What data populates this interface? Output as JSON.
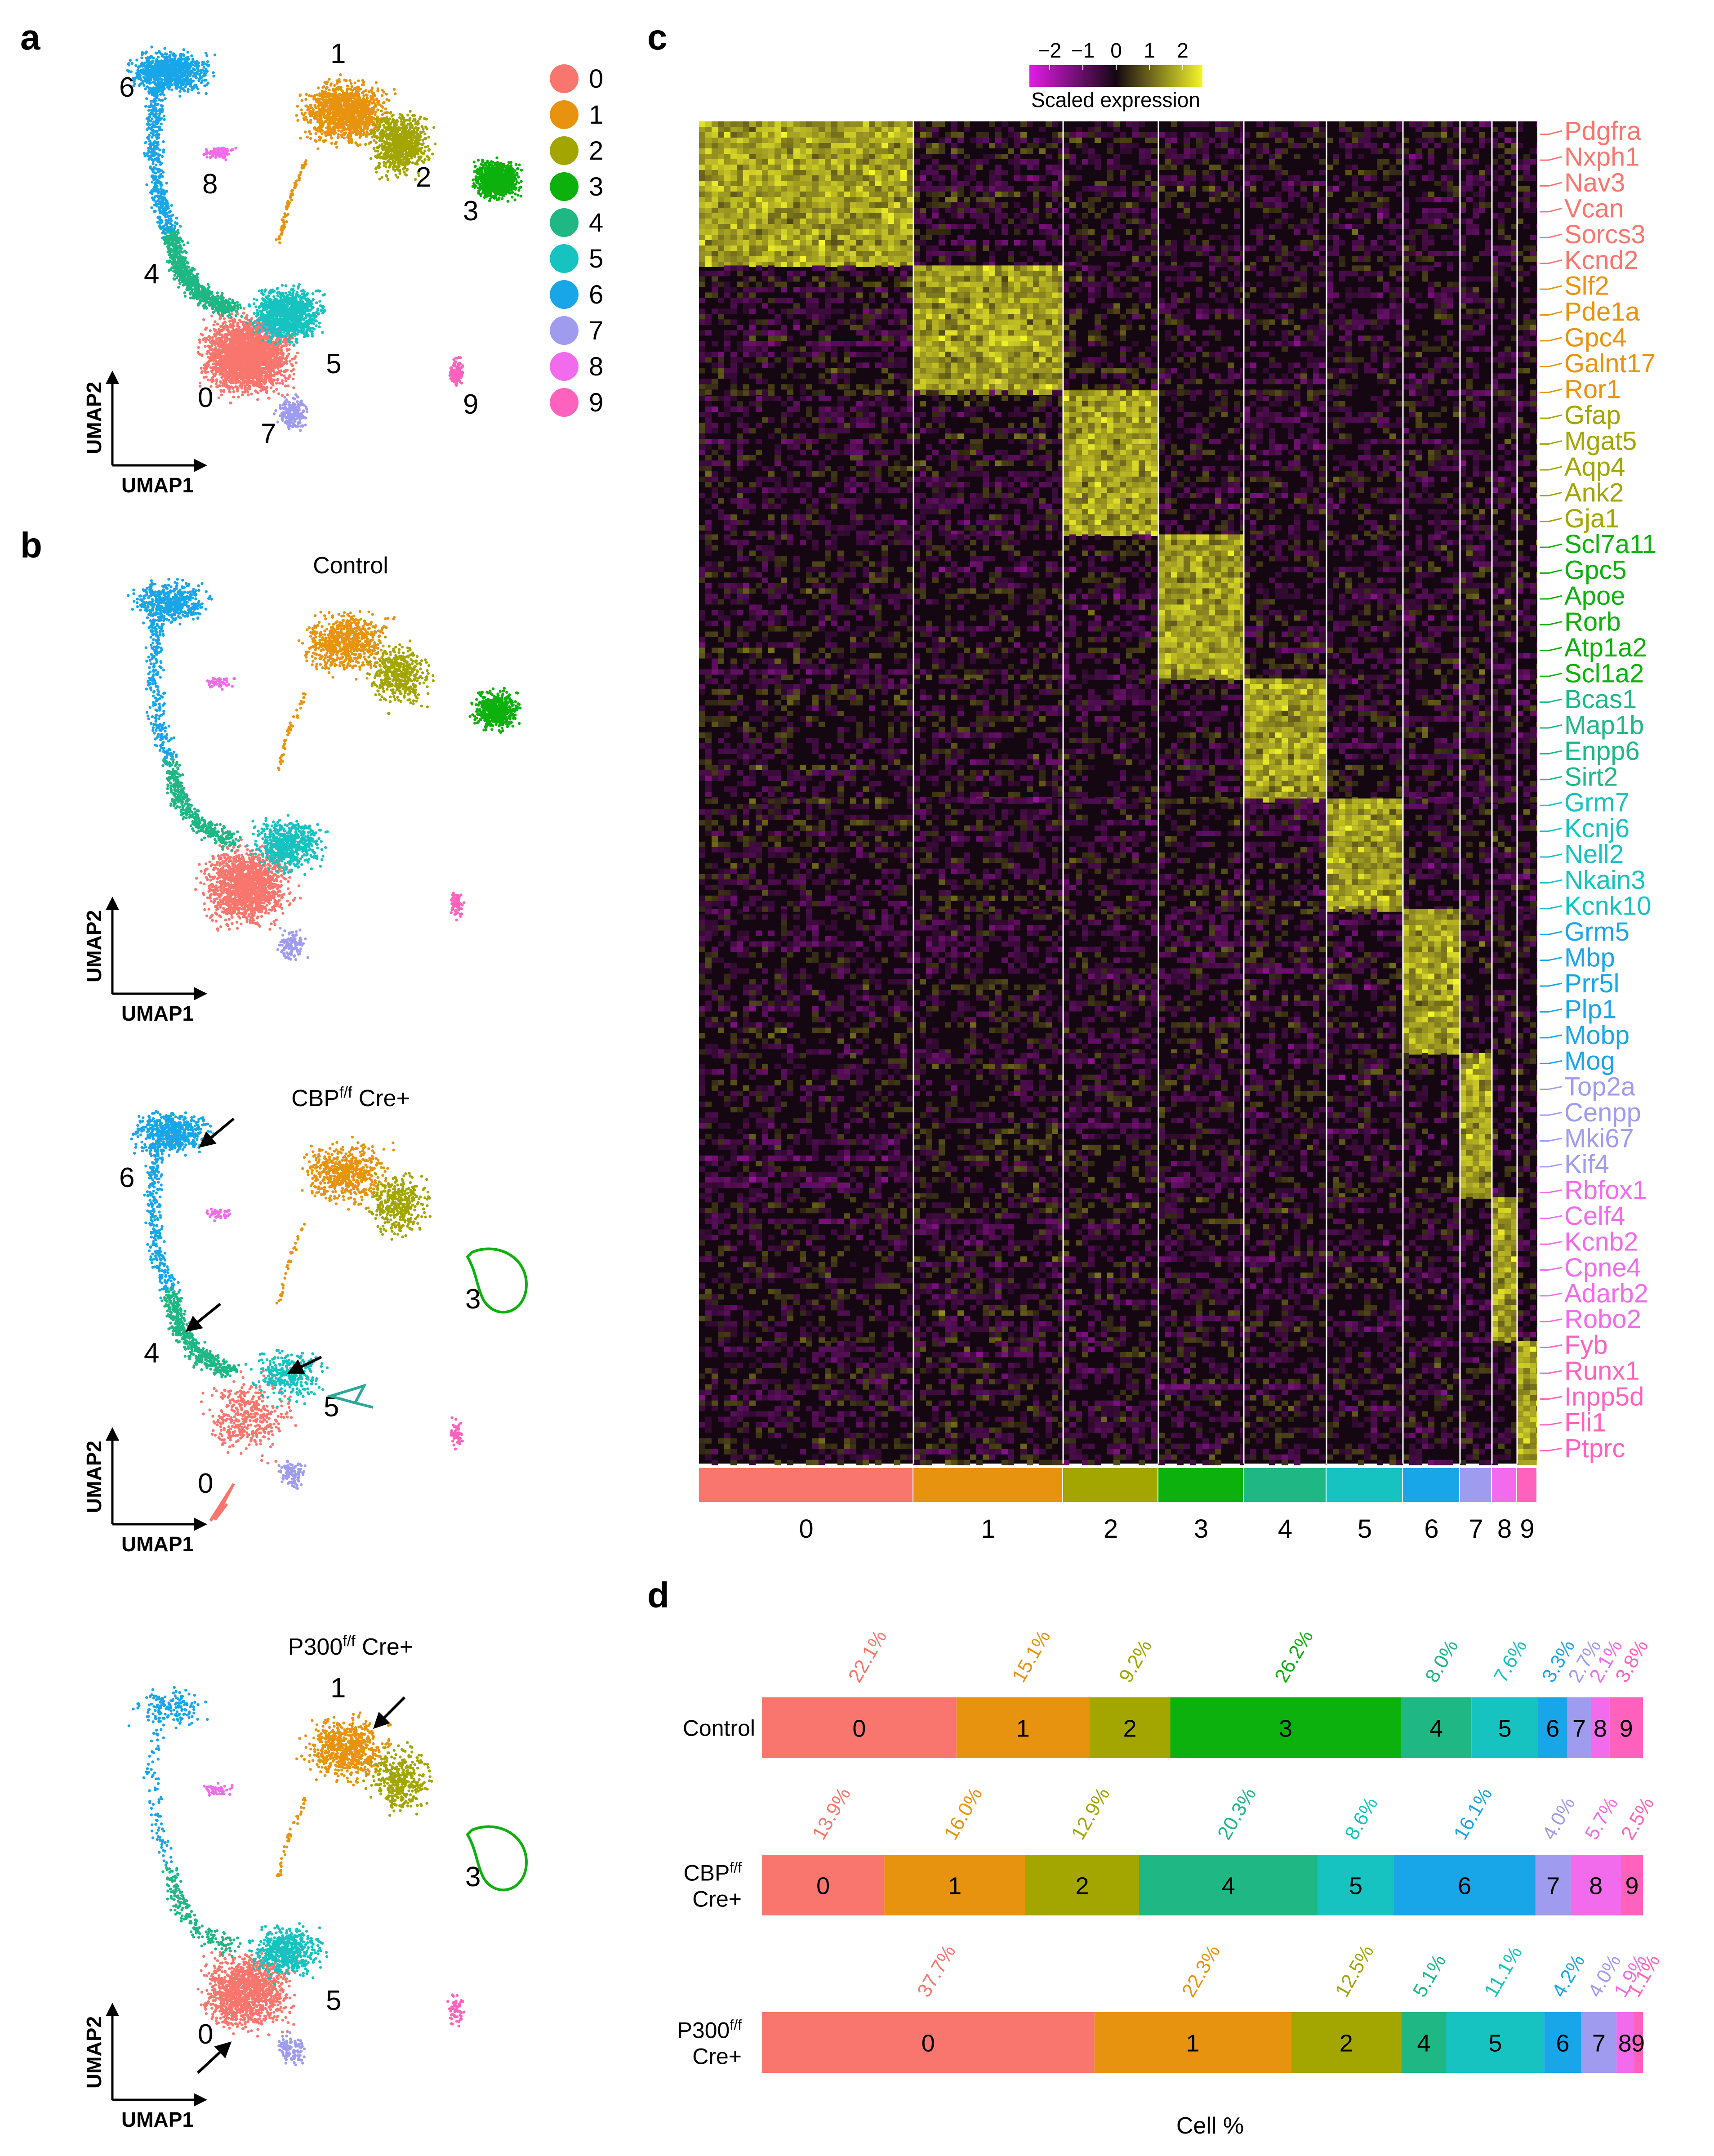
{
  "colors": {
    "c0": "#F8766D",
    "c1": "#E8930F",
    "c2": "#A3A500",
    "c3": "#0DB10D",
    "c4": "#1FB784",
    "c5": "#16C3C0",
    "c6": "#19A6E9",
    "c7": "#9F9CF0",
    "c8": "#F26BEC",
    "c9": "#FF62BC",
    "hm_low": "#E11BE7",
    "hm_mid": "#140712",
    "hm_high": "#F4F52A"
  },
  "panel_a": {
    "letter": "a",
    "axis_x": "UMAP1",
    "axis_y": "UMAP2",
    "cluster_labels": [
      "0",
      "1",
      "2",
      "3",
      "4",
      "5",
      "6",
      "7",
      "8",
      "9"
    ],
    "legend": [
      "0",
      "1",
      "2",
      "3",
      "4",
      "5",
      "6",
      "7",
      "8",
      "9"
    ]
  },
  "panel_b": {
    "letter": "b",
    "axis_x": "UMAP1",
    "axis_y": "UMAP2",
    "control_title": "Control",
    "cbp_title_main": "CBP",
    "cbp_title_sup": "f/f",
    "cbp_title_tail": " Cre+",
    "cbp_labels": [
      "6",
      "4",
      "3",
      "5",
      "0"
    ],
    "p300_title_main": "P300",
    "p300_title_sup": "f/f",
    "p300_title_tail": " Cre+",
    "p300_labels": [
      "1",
      "3",
      "5",
      "0"
    ]
  },
  "panel_c": {
    "letter": "c",
    "colorbar_ticks": [
      "−2",
      "−1",
      "0",
      "1",
      "2"
    ],
    "colorbar_label": "Scaled expression",
    "column_labels": [
      "0",
      "1",
      "2",
      "3",
      "4",
      "5",
      "6",
      "7",
      "8",
      "9"
    ],
    "genes": [
      {
        "name": "Pdgfra",
        "cluster": 0
      },
      {
        "name": "Nxph1",
        "cluster": 0
      },
      {
        "name": "Nav3",
        "cluster": 0
      },
      {
        "name": "Vcan",
        "cluster": 0
      },
      {
        "name": "Sorcs3",
        "cluster": 0
      },
      {
        "name": "Kcnd2",
        "cluster": 0
      },
      {
        "name": "Slf2",
        "cluster": 1
      },
      {
        "name": "Pde1a",
        "cluster": 1
      },
      {
        "name": "Gpc4",
        "cluster": 1
      },
      {
        "name": "Galnt17",
        "cluster": 1
      },
      {
        "name": "Ror1",
        "cluster": 1
      },
      {
        "name": "Gfap",
        "cluster": 2
      },
      {
        "name": "Mgat5",
        "cluster": 2
      },
      {
        "name": "Aqp4",
        "cluster": 2
      },
      {
        "name": "Ank2",
        "cluster": 2
      },
      {
        "name": "Gja1",
        "cluster": 2
      },
      {
        "name": "Scl7a11",
        "cluster": 3
      },
      {
        "name": "Gpc5",
        "cluster": 3
      },
      {
        "name": "Apoe",
        "cluster": 3
      },
      {
        "name": "Rorb",
        "cluster": 3
      },
      {
        "name": "Atp1a2",
        "cluster": 3
      },
      {
        "name": "Scl1a2",
        "cluster": 3
      },
      {
        "name": "Bcas1",
        "cluster": 4
      },
      {
        "name": "Map1b",
        "cluster": 4
      },
      {
        "name": "Enpp6",
        "cluster": 4
      },
      {
        "name": "Sirt2",
        "cluster": 4
      },
      {
        "name": "Grm7",
        "cluster": 5
      },
      {
        "name": "Kcnj6",
        "cluster": 5
      },
      {
        "name": "Nell2",
        "cluster": 5
      },
      {
        "name": "Nkain3",
        "cluster": 5
      },
      {
        "name": "Kcnk10",
        "cluster": 5
      },
      {
        "name": "Grm5",
        "cluster": 6
      },
      {
        "name": "Mbp",
        "cluster": 6
      },
      {
        "name": "Prr5l",
        "cluster": 6
      },
      {
        "name": "Plp1",
        "cluster": 6
      },
      {
        "name": "Mobp",
        "cluster": 6
      },
      {
        "name": "Mog",
        "cluster": 6
      },
      {
        "name": "Top2a",
        "cluster": 7
      },
      {
        "name": "Cenpp",
        "cluster": 7
      },
      {
        "name": "Mki67",
        "cluster": 7
      },
      {
        "name": "Kif4",
        "cluster": 7
      },
      {
        "name": "Rbfox1",
        "cluster": 8
      },
      {
        "name": "Celf4",
        "cluster": 8
      },
      {
        "name": "Kcnb2",
        "cluster": 8
      },
      {
        "name": "Cpne4",
        "cluster": 8
      },
      {
        "name": "Adarb2",
        "cluster": 8
      },
      {
        "name": "Robo2",
        "cluster": 8
      },
      {
        "name": "Fyb",
        "cluster": 9
      },
      {
        "name": "Runx1",
        "cluster": 9
      },
      {
        "name": "Inpp5d",
        "cluster": 9
      },
      {
        "name": "Fli1",
        "cluster": 9
      },
      {
        "name": "Ptprc",
        "cluster": 9
      }
    ]
  },
  "panel_d": {
    "letter": "d",
    "xlabel": "Cell %",
    "chart_data": {
      "type": "bar",
      "orientation": "horizontal-stacked",
      "xlabel": "Cell %",
      "series": [
        {
          "name": "Control",
          "label_lines": [
            "Control"
          ],
          "segments": [
            {
              "cluster": "0",
              "value": 22.1,
              "label": "22.1%"
            },
            {
              "cluster": "1",
              "value": 15.1,
              "label": "15.1%"
            },
            {
              "cluster": "2",
              "value": 9.2,
              "label": "9.2%"
            },
            {
              "cluster": "3",
              "value": 26.2,
              "label": "26.2%"
            },
            {
              "cluster": "4",
              "value": 8.0,
              "label": "8.0%"
            },
            {
              "cluster": "5",
              "value": 7.6,
              "label": "7.6%"
            },
            {
              "cluster": "6",
              "value": 3.3,
              "label": "3.3%"
            },
            {
              "cluster": "7",
              "value": 2.7,
              "label": "2.7%"
            },
            {
              "cluster": "8",
              "value": 2.1,
              "label": "2.1%"
            },
            {
              "cluster": "9",
              "value": 3.8,
              "label": "3.8%"
            }
          ]
        },
        {
          "name": "CBP f/f Cre+",
          "label_main": "CBP",
          "label_sup": "f/f",
          "label_line2": "Cre+",
          "segments": [
            {
              "cluster": "0",
              "value": 13.9,
              "label": "13.9%"
            },
            {
              "cluster": "1",
              "value": 16.0,
              "label": "16.0%"
            },
            {
              "cluster": "2",
              "value": 12.9,
              "label": "12.9%"
            },
            {
              "cluster": "4",
              "value": 20.3,
              "label": "20.3%"
            },
            {
              "cluster": "5",
              "value": 8.6,
              "label": "8.6%"
            },
            {
              "cluster": "6",
              "value": 16.1,
              "label": "16.1%"
            },
            {
              "cluster": "7",
              "value": 4.0,
              "label": "4.0%"
            },
            {
              "cluster": "8",
              "value": 5.7,
              "label": "5.7%"
            },
            {
              "cluster": "9",
              "value": 2.5,
              "label": "2.5%"
            }
          ]
        },
        {
          "name": "P300 f/f Cre+",
          "label_main": "P300",
          "label_sup": "f/f",
          "label_line2": "Cre+",
          "segments": [
            {
              "cluster": "0",
              "value": 37.7,
              "label": "37.7%"
            },
            {
              "cluster": "1",
              "value": 22.3,
              "label": "22.3%"
            },
            {
              "cluster": "2",
              "value": 12.5,
              "label": "12.5%"
            },
            {
              "cluster": "4",
              "value": 5.1,
              "label": "5.1%"
            },
            {
              "cluster": "5",
              "value": 11.1,
              "label": "11.1%"
            },
            {
              "cluster": "6",
              "value": 4.2,
              "label": "4.2%"
            },
            {
              "cluster": "7",
              "value": 4.0,
              "label": "4.0%"
            },
            {
              "cluster": "8",
              "value": 1.9,
              "label": "1.9%"
            },
            {
              "cluster": "9",
              "value": 1.1,
              "label": "1.1%"
            }
          ]
        }
      ]
    }
  }
}
